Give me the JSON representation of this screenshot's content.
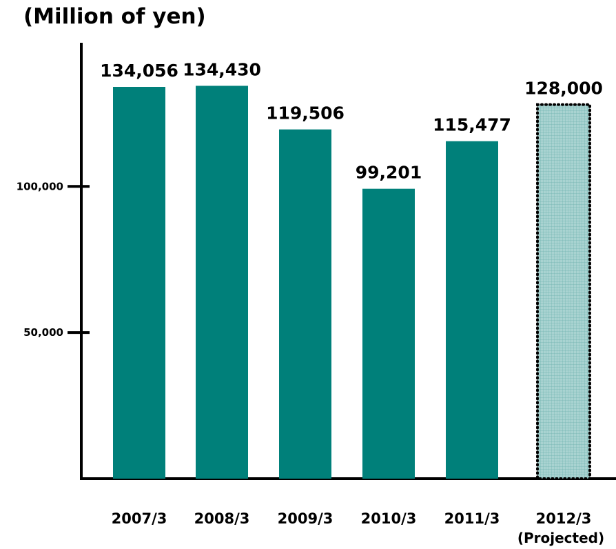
{
  "chart_data": {
    "type": "bar",
    "title": "(Million of yen)",
    "categories": [
      "2007/3",
      "2008/3",
      "2009/3",
      "2010/3",
      "2011/3",
      "2012/3"
    ],
    "category_sublabels": [
      "",
      "",
      "",
      "",
      "",
      "(Projected)"
    ],
    "values": [
      134056,
      134430,
      119506,
      99201,
      115477,
      128000
    ],
    "value_labels": [
      "134,056",
      "134,430",
      "119,506",
      "99,201",
      "115,477",
      "128,000"
    ],
    "projected": [
      false,
      false,
      false,
      false,
      false,
      true
    ],
    "yticks": [
      50000,
      100000
    ],
    "ytick_labels": [
      "50,000",
      "100,000"
    ],
    "ylim": [
      0,
      150000
    ],
    "grid": false,
    "colors": {
      "bar": "#00807a",
      "projected_fill": "#a9d3d1",
      "projected_grid": "#6fb2af",
      "projected_border": "#000000"
    }
  }
}
